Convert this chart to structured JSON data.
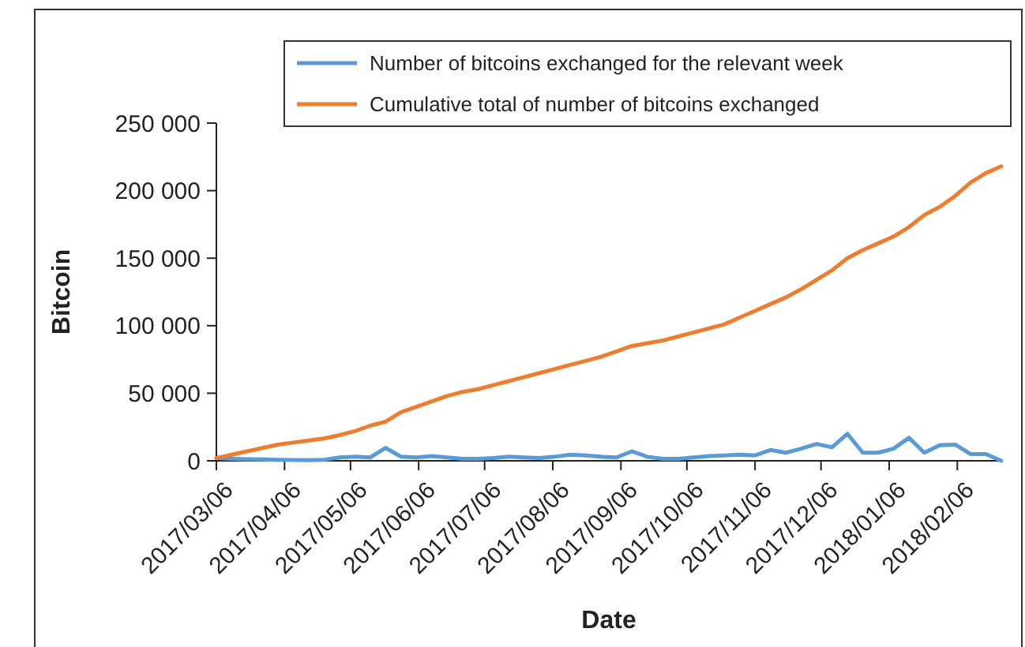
{
  "chart_data": {
    "type": "line",
    "xlabel": "Date",
    "ylabel": "Bitcoin",
    "x": [
      "2017-03-06",
      "2017-03-13",
      "2017-03-20",
      "2017-03-27",
      "2017-04-03",
      "2017-04-10",
      "2017-04-17",
      "2017-04-24",
      "2017-05-01",
      "2017-05-08",
      "2017-05-15",
      "2017-05-22",
      "2017-05-29",
      "2017-06-05",
      "2017-06-12",
      "2017-06-19",
      "2017-06-26",
      "2017-07-03",
      "2017-07-10",
      "2017-07-17",
      "2017-07-24",
      "2017-07-31",
      "2017-08-07",
      "2017-08-14",
      "2017-08-21",
      "2017-08-28",
      "2017-09-04",
      "2017-09-11",
      "2017-09-18",
      "2017-09-25",
      "2017-10-02",
      "2017-10-09",
      "2017-10-16",
      "2017-10-23",
      "2017-10-30",
      "2017-11-06",
      "2017-11-13",
      "2017-11-20",
      "2017-11-27",
      "2017-12-04",
      "2017-12-11",
      "2017-12-18",
      "2017-12-25",
      "2018-01-01",
      "2018-01-08",
      "2018-01-15",
      "2018-01-22",
      "2018-01-29",
      "2018-02-05",
      "2018-02-12",
      "2018-02-19",
      "2018-02-26"
    ],
    "series": [
      {
        "name": "Number of bitcoins exchanged for the relevant week",
        "color": "#5b9bd5",
        "values": [
          2000,
          1500,
          1200,
          1000,
          800,
          600,
          500,
          800,
          2500,
          3000,
          2500,
          9500,
          3000,
          2500,
          3500,
          2500,
          1500,
          1500,
          2000,
          3000,
          2500,
          2000,
          3000,
          4500,
          4000,
          3000,
          2500,
          7000,
          3000,
          1500,
          1500,
          2500,
          3500,
          4000,
          4500,
          4000,
          8000,
          6000,
          9000,
          12500,
          10000,
          20000,
          6000,
          6000,
          9000,
          17000,
          6000,
          11500,
          12000,
          5000,
          5000,
          0
        ]
      },
      {
        "name": "Cumulative total of number of bitcoins exchanged",
        "color": "#ed7d31",
        "values": [
          2000,
          4500,
          7000,
          9500,
          12000,
          13500,
          15000,
          16500,
          19000,
          22000,
          26000,
          29000,
          36000,
          40000,
          44000,
          48000,
          51000,
          53000,
          56000,
          59000,
          62000,
          65000,
          68000,
          71000,
          74000,
          77000,
          81000,
          85000,
          87000,
          89000,
          92000,
          95000,
          98000,
          101000,
          106000,
          111000,
          116000,
          121000,
          127000,
          134000,
          141000,
          150000,
          156000,
          161000,
          166000,
          173000,
          182000,
          188000,
          196000,
          206000,
          213000,
          218000
        ]
      }
    ],
    "xlim": [
      "2017-03-06",
      "2018-02-26"
    ],
    "xticks": [
      {
        "value": "2017-03-06",
        "label": "2017/03/06"
      },
      {
        "value": "2017-04-06",
        "label": "2017/04/06"
      },
      {
        "value": "2017-05-06",
        "label": "2017/05/06"
      },
      {
        "value": "2017-06-06",
        "label": "2017/06/06"
      },
      {
        "value": "2017-07-06",
        "label": "2017/07/06"
      },
      {
        "value": "2017-08-06",
        "label": "2017/08/06"
      },
      {
        "value": "2017-09-06",
        "label": "2017/09/06"
      },
      {
        "value": "2017-10-06",
        "label": "2017/10/06"
      },
      {
        "value": "2017-11-06",
        "label": "2017/11/06"
      },
      {
        "value": "2017-12-06",
        "label": "2017/12/06"
      },
      {
        "value": "2018-01-06",
        "label": "2018/01/06"
      },
      {
        "value": "2018-02-06",
        "label": "2018/02/06"
      }
    ],
    "ylim": [
      0,
      250000
    ],
    "yticks": [
      {
        "value": 0,
        "label": "0"
      },
      {
        "value": 50000,
        "label": "50 000"
      },
      {
        "value": 100000,
        "label": "100 000"
      },
      {
        "value": 150000,
        "label": "150 000"
      },
      {
        "value": 200000,
        "label": "200 000"
      },
      {
        "value": 250000,
        "label": "250 000"
      }
    ],
    "grid": false,
    "legend": "top right",
    "marker": "none",
    "line_style": "solid"
  }
}
